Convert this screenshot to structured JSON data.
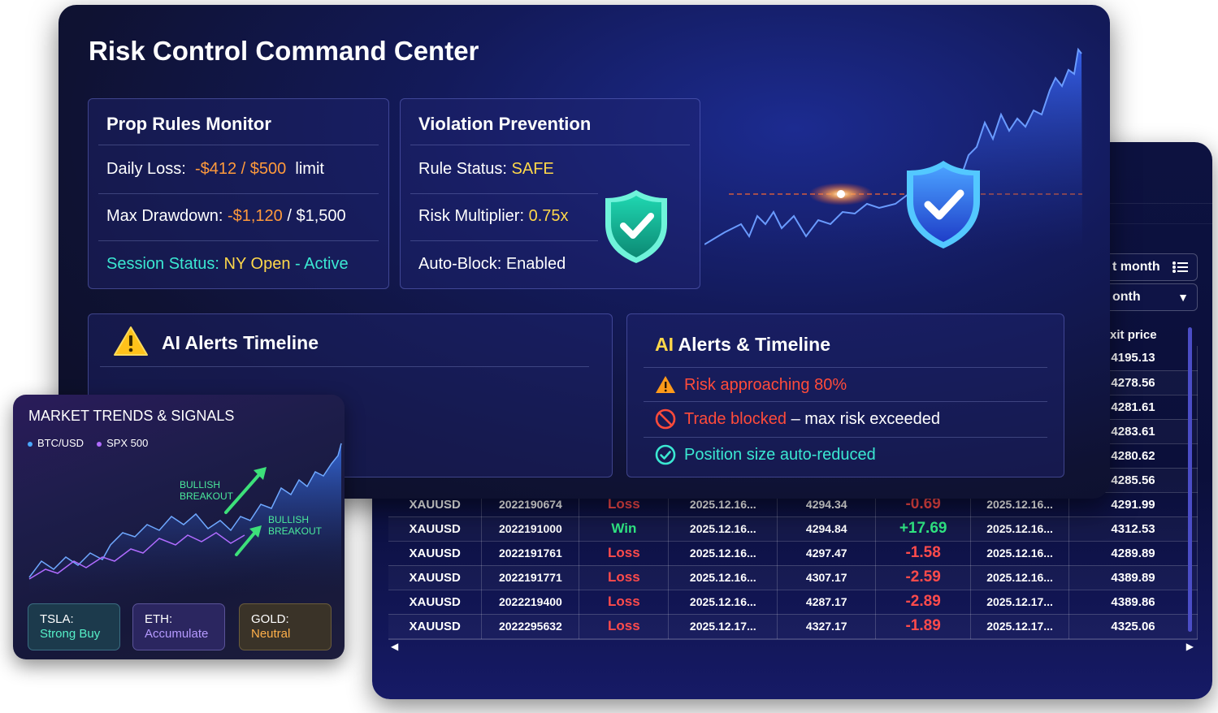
{
  "main": {
    "title": "Risk Control Command Center",
    "prop": {
      "heading": "Prop Rules Monitor",
      "daily_loss_label": "Daily Loss:",
      "daily_loss_value": "-$412 / $500",
      "daily_loss_suffix": "limit",
      "drawdown_label": "Max Drawdown:",
      "drawdown_value": "-$1,120",
      "drawdown_limit": "/ $1,500",
      "session_label": "Session Status:",
      "session_value": "NY Open",
      "session_sep": "-",
      "session_state": "Active"
    },
    "violation": {
      "heading": "Violation Prevention",
      "rule_status_label": "Rule Status:",
      "rule_status_value": "SAFE",
      "risk_mult_label": "Risk Multiplier:",
      "risk_mult_value": "0.75x",
      "auto_block": "Auto-Block: Enabled"
    },
    "ai_left": {
      "title": "AI Alerts Timeline"
    },
    "ai_right": {
      "title_ai": "AI",
      "title_rest": "Alerts & Timeline",
      "item1": "Risk approaching 80%",
      "item2_red": "Trade blocked",
      "item2_rest": "– max risk exceeded",
      "item3": "Position size auto-reduced"
    }
  },
  "table_window": {
    "select1": "t month",
    "select2": "onth",
    "header_exit": "xit price",
    "partial_exit_prices": [
      "4195.13",
      "4278.56",
      "4281.61",
      "4283.61",
      "4280.62",
      "4285.56"
    ],
    "rows": [
      {
        "symbol": "XAUUSD",
        "id": "2022190674",
        "result": "Loss",
        "open_time": "2025.12.16...",
        "open_price": "4294.34",
        "profit": "-0.69",
        "close_time": "2025.12.16...",
        "exit_price": "4291.99"
      },
      {
        "symbol": "XAUUSD",
        "id": "2022191000",
        "result": "Win",
        "open_time": "2025.12.16...",
        "open_price": "4294.84",
        "profit": "+17.69",
        "close_time": "2025.12.16...",
        "exit_price": "4312.53"
      },
      {
        "symbol": "XAUUSD",
        "id": "2022191761",
        "result": "Loss",
        "open_time": "2025.12.16...",
        "open_price": "4297.47",
        "profit": "-1.58",
        "close_time": "2025.12.16...",
        "exit_price": "4289.89"
      },
      {
        "symbol": "XAUUSD",
        "id": "2022191771",
        "result": "Loss",
        "open_time": "2025.12.16...",
        "open_price": "4307.17",
        "profit": "-2.59",
        "close_time": "2025.12.16...",
        "exit_price": "4389.89"
      },
      {
        "symbol": "XAUUSD",
        "id": "2022219400",
        "result": "Loss",
        "open_time": "2025.12.16...",
        "open_price": "4287.17",
        "profit": "-2.89",
        "close_time": "2025.12.17...",
        "exit_price": "4389.86"
      },
      {
        "symbol": "XAUUSD",
        "id": "2022295632",
        "result": "Loss",
        "open_time": "2025.12.17...",
        "open_price": "4327.17",
        "profit": "-1.89",
        "close_time": "2025.12.17...",
        "exit_price": "4325.06"
      }
    ]
  },
  "market": {
    "title": "MARKET TRENDS & SIGNALS",
    "legend1": "BTC/USD",
    "legend2": "SPX 500",
    "tag1_line1": "BULLISH",
    "tag1_line2": "BREAKOUT",
    "tag2_line1": "BULLISH",
    "tag2_line2": "BREAKOUT",
    "tsla_label": "TSLA:",
    "tsla_value": "Strong Buy",
    "eth_label": "ETH:",
    "eth_value": "Accumulate",
    "gold_label": "GOLD:",
    "gold_value": "Neutral"
  },
  "colors": {
    "accent_orange": "#ff9a3c",
    "accent_yellow": "#ffd84a",
    "accent_teal": "#3be8d2",
    "win_green": "#30e884",
    "loss_red": "#ff4b4b"
  }
}
